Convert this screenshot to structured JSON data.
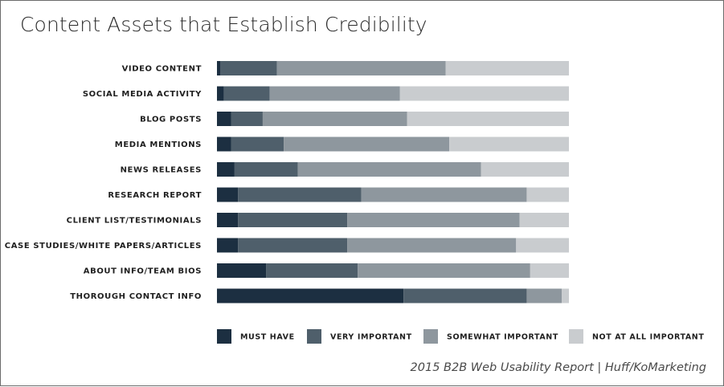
{
  "title": "Content Assets that Establish Credibility",
  "footer": "2015 B2B Web Usability Report | Huff/KoMarketing",
  "chart_data": {
    "type": "bar",
    "orientation": "horizontal",
    "stacked": true,
    "percent": true,
    "title": "Content Assets that Establish Credibility",
    "categories": [
      "VIDEO CONTENT",
      "SOCIAL MEDIA ACTIVITY",
      "BLOG POSTS",
      "MEDIA MENTIONS",
      "NEWS RELEASES",
      "RESEARCH REPORT",
      "CLIENT LIST/TESTIMONIALS",
      "CASE STUDIES/WHITE PAPERS/ARTICLES",
      "ABOUT INFO/TEAM BIOS",
      "THOROUGH CONTACT INFO"
    ],
    "series": [
      {
        "name": "MUST HAVE",
        "color": "#1c2f41",
        "values": [
          1,
          2,
          4,
          4,
          5,
          6,
          6,
          6,
          14,
          53
        ]
      },
      {
        "name": "VERY IMPORTANT",
        "color": "#4f5f6b",
        "values": [
          16,
          13,
          9,
          15,
          18,
          35,
          31,
          31,
          26,
          35
        ]
      },
      {
        "name": "SOMEWHAT IMPORTANT",
        "color": "#8e979e",
        "values": [
          48,
          37,
          41,
          47,
          52,
          47,
          49,
          48,
          49,
          10
        ]
      },
      {
        "name": "NOT AT ALL IMPORTANT",
        "color": "#c9cccf",
        "values": [
          35,
          48,
          46,
          34,
          25,
          12,
          14,
          15,
          11,
          2
        ]
      }
    ],
    "legend": "bottom",
    "grid": false
  }
}
